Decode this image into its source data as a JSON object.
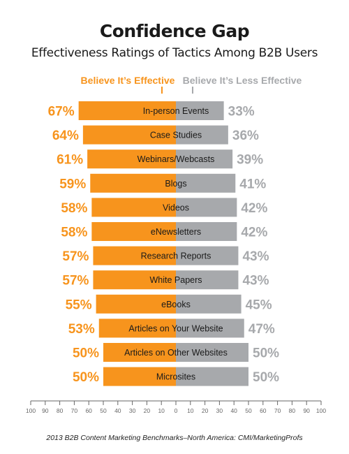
{
  "title": "Confidence Gap",
  "subtitle": "Effectiveness Ratings of Tactics Among B2B Users",
  "source": "2013 B2B Content Marketing Benchmarks–North America: CMI/MarketingProfs",
  "colors": {
    "effective": "#F7941D",
    "less_effective": "#A7A9AC",
    "axis": "#666666",
    "label_text": "#1a1a1a"
  },
  "chart_data": {
    "type": "bar",
    "orientation": "horizontal-diverging",
    "categories": [
      "In-person Events",
      "Case Studies",
      "Webinars/Webcasts",
      "Blogs",
      "Videos",
      "eNewsletters",
      "Research Reports",
      "White Papers",
      "eBooks",
      "Articles on Your Website",
      "Articles on Other Websites",
      "Microsites"
    ],
    "series": [
      {
        "name": "Believe It’s Effective",
        "values": [
          67,
          64,
          61,
          59,
          58,
          58,
          57,
          57,
          55,
          53,
          50,
          50
        ],
        "labels": [
          "67%",
          "64%",
          "61%",
          "59%",
          "58%",
          "58%",
          "57%",
          "57%",
          "55%",
          "53%",
          "50%",
          "50%"
        ]
      },
      {
        "name": "Believe It’s Less Effective",
        "values": [
          33,
          36,
          39,
          41,
          42,
          42,
          43,
          43,
          45,
          47,
          50,
          50
        ],
        "labels": [
          "33%",
          "36%",
          "39%",
          "41%",
          "42%",
          "42%",
          "43%",
          "43%",
          "45%",
          "47%",
          "50%",
          "50%"
        ]
      }
    ],
    "xlim": [
      -100,
      100
    ],
    "ticks": [
      "100",
      "90",
      "80",
      "70",
      "60",
      "50",
      "40",
      "30",
      "20",
      "10",
      "0",
      "10",
      "20",
      "30",
      "40",
      "50",
      "60",
      "70",
      "80",
      "90",
      "100"
    ],
    "legend_position": "top"
  }
}
